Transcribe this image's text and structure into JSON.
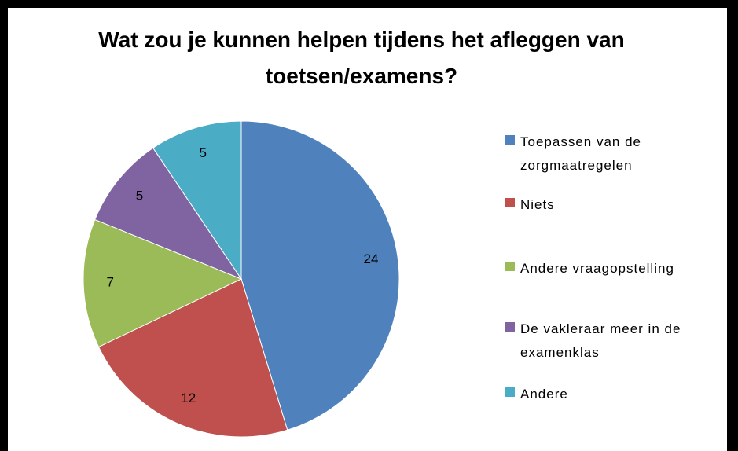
{
  "chart_data": {
    "type": "pie",
    "title": "Wat zou je kunnen helpen tijdens het afleggen van toetsen/examens?",
    "categories": [
      "Toepassen van de zorgmaatregelen",
      "Niets",
      "Andere vraagopstelling",
      "De vakleraar meer in de examenklas",
      "Andere"
    ],
    "values": [
      24,
      12,
      7,
      5,
      5
    ],
    "colors": [
      "#4f81bd",
      "#c0504d",
      "#9bbb59",
      "#8064a2",
      "#4bacc6"
    ],
    "legend": "right"
  }
}
